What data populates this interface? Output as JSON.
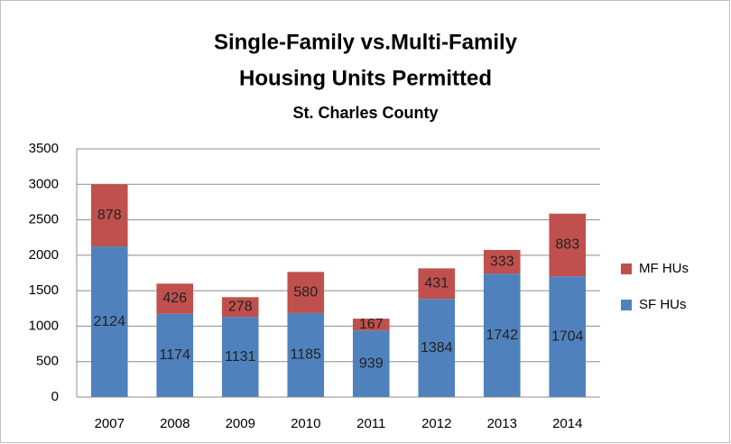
{
  "chart_data": {
    "type": "stacked_bar",
    "title": [
      "Single-Family vs.Multi-Family",
      "Housing Units Permitted"
    ],
    "subtitle": "St. Charles County",
    "categories": [
      "2007",
      "2008",
      "2009",
      "2010",
      "2011",
      "2012",
      "2013",
      "2014"
    ],
    "series": [
      {
        "name": "SF HUs",
        "color": "#4f81bd",
        "values": [
          2124,
          1174,
          1131,
          1185,
          939,
          1384,
          1742,
          1704
        ]
      },
      {
        "name": "MF HUs",
        "color": "#c0504d",
        "values": [
          878,
          426,
          278,
          580,
          167,
          431,
          333,
          883
        ]
      }
    ],
    "ylim": [
      0,
      3500
    ],
    "yticks": [
      0,
      500,
      1000,
      1500,
      2000,
      2500,
      3000,
      3500
    ],
    "grid": true,
    "legend": "right"
  }
}
